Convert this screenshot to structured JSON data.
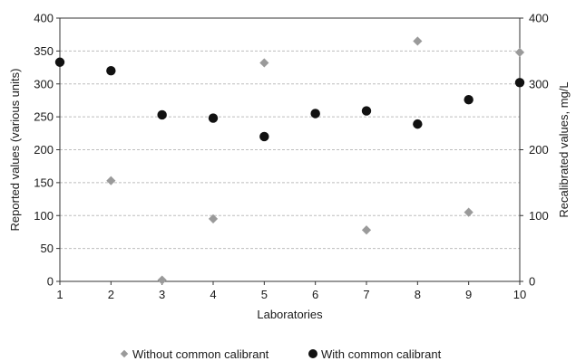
{
  "chart_data": {
    "type": "scatter",
    "title": "",
    "xlabel": "Laboratories",
    "ylabel_left": "Reported values (various units)",
    "ylabel_right": "Recalibrated values, mg/L",
    "x_ticks": [
      "1",
      "2",
      "3",
      "4",
      "5",
      "6",
      "7",
      "8",
      "9",
      "10"
    ],
    "xlim": [
      1,
      10
    ],
    "ylim_left": [
      0,
      400
    ],
    "ylim_right": [
      0,
      400
    ],
    "y_ticks_left": [
      "0",
      "50",
      "100",
      "150",
      "200",
      "250",
      "300",
      "350",
      "400"
    ],
    "y_ticks_right": [
      "0",
      "100",
      "200",
      "300",
      "400"
    ],
    "grid": true,
    "legend_position": "bottom",
    "series": [
      {
        "name": "Without common calibrant",
        "marker": "diamond",
        "color": "#9a9a9a",
        "axis": "left",
        "x": [
          1,
          2,
          3,
          4,
          5,
          7,
          8,
          9,
          10
        ],
        "y": [
          333,
          153,
          2,
          95,
          332,
          78,
          365,
          105,
          348
        ]
      },
      {
        "name": "With common calibrant",
        "marker": "circle",
        "color": "#111111",
        "axis": "right",
        "x": [
          1,
          2,
          3,
          4,
          5,
          6,
          7,
          8,
          9,
          10
        ],
        "y": [
          333,
          320,
          253,
          248,
          220,
          255,
          259,
          239,
          276,
          302
        ]
      }
    ]
  }
}
